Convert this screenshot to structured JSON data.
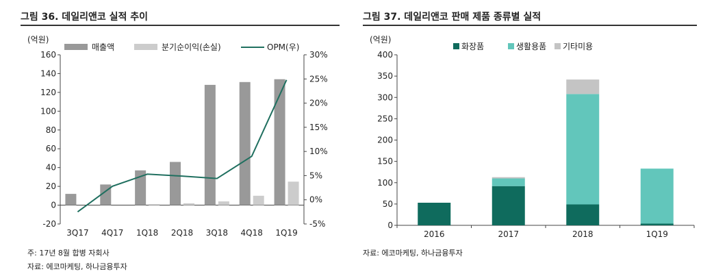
{
  "chart_data": [
    {
      "type": "bar",
      "title": "그림 36. 데일리앤코 실적 추이",
      "ylabel": "(억원)",
      "ylim": [
        -20,
        160
      ],
      "yticks": [
        -20,
        0,
        20,
        40,
        60,
        80,
        100,
        120,
        140,
        160
      ],
      "y2lim": [
        -5,
        30
      ],
      "y2ticks": [
        "-5%",
        "0%",
        "5%",
        "10%",
        "15%",
        "20%",
        "25%",
        "30%"
      ],
      "y2tick_values": [
        -5,
        0,
        5,
        10,
        15,
        20,
        25,
        30
      ],
      "categories": [
        "3Q17",
        "4Q17",
        "1Q18",
        "2Q18",
        "3Q18",
        "4Q18",
        "1Q19"
      ],
      "series": [
        {
          "name": "매출액",
          "kind": "bar",
          "axis": "left",
          "color": "#999999",
          "values": [
            12,
            22,
            37,
            46,
            128,
            131,
            134
          ]
        },
        {
          "name": "분기순이익(손실)",
          "kind": "bar",
          "axis": "left",
          "color": "#cccccc",
          "values": [
            0,
            0,
            1,
            2,
            4,
            10,
            25
          ]
        },
        {
          "name": "OPM(우)",
          "kind": "line",
          "axis": "right",
          "color": "#1f6f5f",
          "values": [
            -2.5,
            2.8,
            5.3,
            4.9,
            4.4,
            9.0,
            24.8
          ]
        }
      ],
      "notes": [
        "주: 17년 8월 합병 자회사",
        "자료: 에코마케팅, 하나금융투자"
      ]
    },
    {
      "type": "bar",
      "stacked": true,
      "title": "그림 37. 데일리앤코 판매 제품 종류별 실적",
      "ylabel": "(억원)",
      "ylim": [
        0,
        400
      ],
      "yticks": [
        0,
        50,
        100,
        150,
        200,
        250,
        300,
        350,
        400
      ],
      "categories": [
        "2016",
        "2017",
        "2018",
        "1Q19"
      ],
      "series": [
        {
          "name": "화장품",
          "color": "#0f6b5d",
          "values": [
            53,
            92,
            49,
            4
          ]
        },
        {
          "name": "생활용품",
          "color": "#62c6bb",
          "values": [
            0,
            18,
            259,
            129
          ]
        },
        {
          "name": "기타미용",
          "color": "#c4c4c4",
          "values": [
            0,
            3,
            34,
            0
          ]
        }
      ],
      "notes": [
        "자료: 에코마케팅, 하나금융투자"
      ]
    }
  ]
}
